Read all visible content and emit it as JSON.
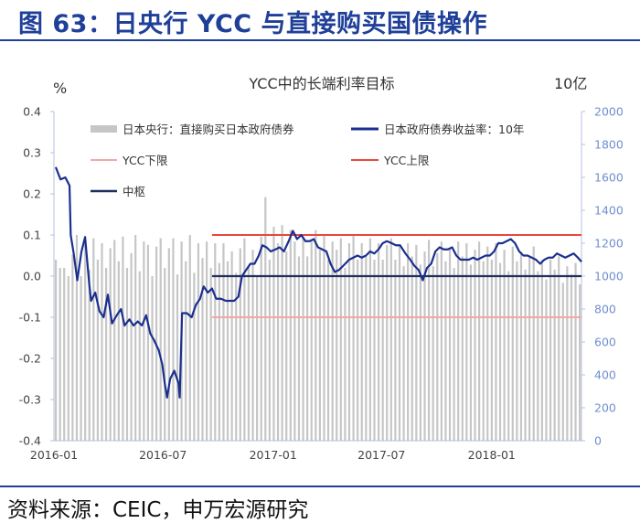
{
  "figure": {
    "title": "图 63：日央行 YCC 与直接购买国债操作",
    "source": "资料来源：CEIC，申万宏源研究"
  },
  "colors": {
    "title": "#1f3f99",
    "bars": "#c6c6c6",
    "jgb_line": "#1b2f8f",
    "lower": "#f0a8a8",
    "upper": "#e8483c",
    "middle": "#1f2e5e",
    "axis": "#b5c0dc",
    "ytick": "#6f8fcf"
  },
  "chart_data": {
    "type": "bar+line",
    "title": "YCC中的长端利率目标",
    "left_axis": {
      "label": "%",
      "ylim": [
        -0.4,
        0.4
      ],
      "ticks": [
        "0.4",
        "0.3",
        "0.2",
        "0.1",
        "0.0",
        "-0.1",
        "-0.2",
        "-0.3",
        "-0.4"
      ]
    },
    "right_axis": {
      "label": "10亿",
      "ylim": [
        0,
        2000
      ],
      "ticks": [
        "2000",
        "1800",
        "1600",
        "1400",
        "1200",
        "1000",
        "800",
        "600",
        "400",
        "200",
        "0"
      ]
    },
    "x_axis": {
      "range": [
        "2016-01-01",
        "2018-05-31"
      ],
      "ticks": [
        "2016-01",
        "2016-07",
        "2017-01",
        "2017-07",
        "2018-01"
      ]
    },
    "legend": {
      "bars": "日本央行：直接购买日本政府债券",
      "jgb": "日本政府债券收益率：10年",
      "lower": "YCC下限",
      "upper": "YCC上限",
      "middle": "中枢"
    },
    "ycc_bands": {
      "start": "2016-09-21",
      "end": "2018-05-31",
      "upper": 0.1,
      "middle": 0.0,
      "lower": -0.1
    },
    "jgb_10y": [
      [
        "2016-01-04",
        0.265
      ],
      [
        "2016-01-12",
        0.235
      ],
      [
        "2016-01-20",
        0.24
      ],
      [
        "2016-01-27",
        0.22
      ],
      [
        "2016-01-29",
        0.1
      ],
      [
        "2016-02-03",
        0.055
      ],
      [
        "2016-02-09",
        -0.01
      ],
      [
        "2016-02-16",
        0.06
      ],
      [
        "2016-02-22",
        0.095
      ],
      [
        "2016-02-29",
        -0.02
      ],
      [
        "2016-03-03",
        -0.06
      ],
      [
        "2016-03-10",
        -0.04
      ],
      [
        "2016-03-17",
        -0.085
      ],
      [
        "2016-03-24",
        -0.1
      ],
      [
        "2016-03-31",
        -0.045
      ],
      [
        "2016-04-07",
        -0.115
      ],
      [
        "2016-04-15",
        -0.095
      ],
      [
        "2016-04-22",
        -0.08
      ],
      [
        "2016-04-28",
        -0.12
      ],
      [
        "2016-05-06",
        -0.105
      ],
      [
        "2016-05-13",
        -0.12
      ],
      [
        "2016-05-20",
        -0.11
      ],
      [
        "2016-05-27",
        -0.12
      ],
      [
        "2016-06-03",
        -0.095
      ],
      [
        "2016-06-10",
        -0.14
      ],
      [
        "2016-06-16",
        -0.155
      ],
      [
        "2016-06-24",
        -0.18
      ],
      [
        "2016-06-30",
        -0.215
      ],
      [
        "2016-07-04",
        -0.26
      ],
      [
        "2016-07-08",
        -0.295
      ],
      [
        "2016-07-13",
        -0.25
      ],
      [
        "2016-07-20",
        -0.23
      ],
      [
        "2016-07-27",
        -0.26
      ],
      [
        "2016-07-29",
        -0.295
      ],
      [
        "2016-08-02",
        -0.09
      ],
      [
        "2016-08-10",
        -0.09
      ],
      [
        "2016-08-18",
        -0.1
      ],
      [
        "2016-08-25",
        -0.07
      ],
      [
        "2016-09-01",
        -0.055
      ],
      [
        "2016-09-07",
        -0.025
      ],
      [
        "2016-09-14",
        -0.04
      ],
      [
        "2016-09-21",
        -0.03
      ],
      [
        "2016-09-28",
        -0.055
      ],
      [
        "2016-10-06",
        -0.055
      ],
      [
        "2016-10-14",
        -0.06
      ],
      [
        "2016-10-21",
        -0.06
      ],
      [
        "2016-10-28",
        -0.06
      ],
      [
        "2016-11-04",
        -0.05
      ],
      [
        "2016-11-10",
        0.0
      ],
      [
        "2016-11-17",
        0.015
      ],
      [
        "2016-11-24",
        0.03
      ],
      [
        "2016-12-01",
        0.03
      ],
      [
        "2016-12-08",
        0.05
      ],
      [
        "2016-12-14",
        0.075
      ],
      [
        "2016-12-21",
        0.07
      ],
      [
        "2016-12-28",
        0.06
      ],
      [
        "2017-01-05",
        0.065
      ],
      [
        "2017-01-12",
        0.07
      ],
      [
        "2017-01-19",
        0.06
      ],
      [
        "2017-01-27",
        0.085
      ],
      [
        "2017-02-03",
        0.11
      ],
      [
        "2017-02-10",
        0.09
      ],
      [
        "2017-02-17",
        0.1
      ],
      [
        "2017-02-24",
        0.085
      ],
      [
        "2017-03-03",
        0.085
      ],
      [
        "2017-03-10",
        0.09
      ],
      [
        "2017-03-17",
        0.07
      ],
      [
        "2017-03-24",
        0.065
      ],
      [
        "2017-03-31",
        0.06
      ],
      [
        "2017-04-07",
        0.03
      ],
      [
        "2017-04-14",
        0.01
      ],
      [
        "2017-04-21",
        0.015
      ],
      [
        "2017-04-28",
        0.025
      ],
      [
        "2017-05-08",
        0.04
      ],
      [
        "2017-05-15",
        0.045
      ],
      [
        "2017-05-22",
        0.05
      ],
      [
        "2017-05-29",
        0.045
      ],
      [
        "2017-06-05",
        0.05
      ],
      [
        "2017-06-12",
        0.06
      ],
      [
        "2017-06-19",
        0.055
      ],
      [
        "2017-06-26",
        0.065
      ],
      [
        "2017-07-03",
        0.08
      ],
      [
        "2017-07-10",
        0.085
      ],
      [
        "2017-07-18",
        0.08
      ],
      [
        "2017-07-25",
        0.075
      ],
      [
        "2017-08-01",
        0.075
      ],
      [
        "2017-08-10",
        0.055
      ],
      [
        "2017-08-18",
        0.04
      ],
      [
        "2017-08-25",
        0.025
      ],
      [
        "2017-09-01",
        0.015
      ],
      [
        "2017-09-08",
        -0.01
      ],
      [
        "2017-09-15",
        0.02
      ],
      [
        "2017-09-22",
        0.03
      ],
      [
        "2017-09-29",
        0.06
      ],
      [
        "2017-10-06",
        0.07
      ],
      [
        "2017-10-13",
        0.065
      ],
      [
        "2017-10-20",
        0.065
      ],
      [
        "2017-10-27",
        0.07
      ],
      [
        "2017-11-03",
        0.05
      ],
      [
        "2017-11-10",
        0.04
      ],
      [
        "2017-11-17",
        0.04
      ],
      [
        "2017-11-24",
        0.04
      ],
      [
        "2017-12-01",
        0.045
      ],
      [
        "2017-12-08",
        0.04
      ],
      [
        "2017-12-15",
        0.045
      ],
      [
        "2017-12-22",
        0.05
      ],
      [
        "2017-12-29",
        0.05
      ],
      [
        "2018-01-05",
        0.06
      ],
      [
        "2018-01-12",
        0.08
      ],
      [
        "2018-01-19",
        0.08
      ],
      [
        "2018-01-26",
        0.085
      ],
      [
        "2018-02-02",
        0.09
      ],
      [
        "2018-02-09",
        0.08
      ],
      [
        "2018-02-16",
        0.06
      ],
      [
        "2018-02-23",
        0.05
      ],
      [
        "2018-03-02",
        0.05
      ],
      [
        "2018-03-09",
        0.045
      ],
      [
        "2018-03-16",
        0.04
      ],
      [
        "2018-03-23",
        0.03
      ],
      [
        "2018-03-30",
        0.04
      ],
      [
        "2018-04-06",
        0.045
      ],
      [
        "2018-04-13",
        0.045
      ],
      [
        "2018-04-20",
        0.055
      ],
      [
        "2018-04-27",
        0.05
      ],
      [
        "2018-05-04",
        0.045
      ],
      [
        "2018-05-11",
        0.05
      ],
      [
        "2018-05-18",
        0.055
      ],
      [
        "2018-05-25",
        0.045
      ],
      [
        "2018-05-31",
        0.035
      ]
    ],
    "purchases": [
      [
        "2016-01-04",
        1100
      ],
      [
        "2016-01-11",
        1050
      ],
      [
        "2016-01-18",
        1050
      ],
      [
        "2016-01-25",
        1000
      ],
      [
        "2016-02-01",
        1130
      ],
      [
        "2016-02-08",
        1250
      ],
      [
        "2016-02-15",
        1000
      ],
      [
        "2016-02-22",
        1190
      ],
      [
        "2016-02-29",
        1040
      ],
      [
        "2016-03-07",
        1230
      ],
      [
        "2016-03-14",
        1100
      ],
      [
        "2016-03-21",
        1200
      ],
      [
        "2016-03-28",
        1050
      ],
      [
        "2016-04-04",
        1170
      ],
      [
        "2016-04-11",
        1220
      ],
      [
        "2016-04-18",
        1090
      ],
      [
        "2016-04-25",
        1240
      ],
      [
        "2016-05-02",
        1050
      ],
      [
        "2016-05-09",
        1140
      ],
      [
        "2016-05-16",
        1250
      ],
      [
        "2016-05-23",
        1030
      ],
      [
        "2016-05-30",
        1210
      ],
      [
        "2016-06-06",
        1190
      ],
      [
        "2016-06-13",
        1000
      ],
      [
        "2016-06-20",
        1180
      ],
      [
        "2016-06-27",
        1230
      ],
      [
        "2016-07-04",
        1050
      ],
      [
        "2016-07-11",
        1170
      ],
      [
        "2016-07-18",
        1230
      ],
      [
        "2016-07-25",
        1010
      ],
      [
        "2016-08-01",
        1210
      ],
      [
        "2016-08-08",
        1090
      ],
      [
        "2016-08-15",
        1250
      ],
      [
        "2016-08-22",
        1020
      ],
      [
        "2016-08-29",
        1200
      ],
      [
        "2016-09-05",
        1110
      ],
      [
        "2016-09-12",
        1210
      ],
      [
        "2016-09-19",
        1050
      ],
      [
        "2016-09-26",
        1200
      ],
      [
        "2016-10-03",
        1080
      ],
      [
        "2016-10-10",
        1200
      ],
      [
        "2016-10-17",
        1090
      ],
      [
        "2016-10-24",
        1150
      ],
      [
        "2016-10-31",
        1020
      ],
      [
        "2016-11-07",
        1170
      ],
      [
        "2016-11-14",
        1230
      ],
      [
        "2016-11-21",
        1060
      ],
      [
        "2016-11-28",
        1160
      ],
      [
        "2016-12-05",
        1000
      ],
      [
        "2016-12-12",
        1240
      ],
      [
        "2016-12-19",
        1480
      ],
      [
        "2016-12-26",
        1100
      ],
      [
        "2017-01-02",
        1300
      ],
      [
        "2017-01-09",
        1200
      ],
      [
        "2017-01-16",
        1310
      ],
      [
        "2017-01-23",
        1150
      ],
      [
        "2017-01-30",
        1280
      ],
      [
        "2017-02-06",
        1210
      ],
      [
        "2017-02-13",
        1120
      ],
      [
        "2017-02-20",
        1240
      ],
      [
        "2017-02-27",
        1120
      ],
      [
        "2017-03-06",
        1220
      ],
      [
        "2017-03-13",
        1280
      ],
      [
        "2017-03-20",
        1160
      ],
      [
        "2017-03-27",
        1250
      ],
      [
        "2017-04-03",
        1100
      ],
      [
        "2017-04-10",
        1210
      ],
      [
        "2017-04-17",
        1160
      ],
      [
        "2017-04-24",
        1230
      ],
      [
        "2017-05-01",
        1050
      ],
      [
        "2017-05-08",
        1200
      ],
      [
        "2017-05-15",
        1250
      ],
      [
        "2017-05-22",
        1100
      ],
      [
        "2017-05-29",
        1200
      ],
      [
        "2017-06-05",
        1120
      ],
      [
        "2017-06-12",
        1230
      ],
      [
        "2017-06-19",
        1100
      ],
      [
        "2017-06-26",
        1200
      ],
      [
        "2017-07-03",
        1100
      ],
      [
        "2017-07-10",
        1190
      ],
      [
        "2017-07-17",
        1230
      ],
      [
        "2017-07-24",
        1100
      ],
      [
        "2017-07-31",
        1180
      ],
      [
        "2017-08-07",
        1060
      ],
      [
        "2017-08-14",
        1200
      ],
      [
        "2017-08-21",
        1120
      ],
      [
        "2017-08-28",
        1190
      ],
      [
        "2017-09-04",
        1070
      ],
      [
        "2017-09-11",
        1150
      ],
      [
        "2017-09-18",
        1220
      ],
      [
        "2017-09-25",
        1060
      ],
      [
        "2017-10-02",
        1140
      ],
      [
        "2017-10-09",
        1210
      ],
      [
        "2017-10-16",
        1090
      ],
      [
        "2017-10-23",
        1170
      ],
      [
        "2017-10-30",
        1050
      ],
      [
        "2017-11-06",
        1210
      ],
      [
        "2017-11-13",
        1120
      ],
      [
        "2017-11-20",
        1200
      ],
      [
        "2017-11-27",
        1070
      ],
      [
        "2017-12-04",
        1160
      ],
      [
        "2017-12-11",
        1210
      ],
      [
        "2017-12-18",
        1090
      ],
      [
        "2017-12-25",
        1180
      ],
      [
        "2018-01-01",
        1100
      ],
      [
        "2018-01-08",
        1200
      ],
      [
        "2018-01-15",
        1080
      ],
      [
        "2018-01-22",
        1160
      ],
      [
        "2018-01-29",
        1030
      ],
      [
        "2018-02-05",
        1180
      ],
      [
        "2018-02-12",
        1090
      ],
      [
        "2018-02-19",
        1150
      ],
      [
        "2018-02-26",
        1040
      ],
      [
        "2018-03-05",
        1120
      ],
      [
        "2018-03-12",
        1180
      ],
      [
        "2018-03-19",
        1030
      ],
      [
        "2018-03-26",
        1100
      ],
      [
        "2018-04-02",
        980
      ],
      [
        "2018-04-09",
        1100
      ],
      [
        "2018-04-16",
        1040
      ],
      [
        "2018-04-23",
        1120
      ],
      [
        "2018-04-30",
        960
      ],
      [
        "2018-05-07",
        1060
      ],
      [
        "2018-05-14",
        1010
      ],
      [
        "2018-05-21",
        1080
      ],
      [
        "2018-05-28",
        950
      ]
    ]
  }
}
